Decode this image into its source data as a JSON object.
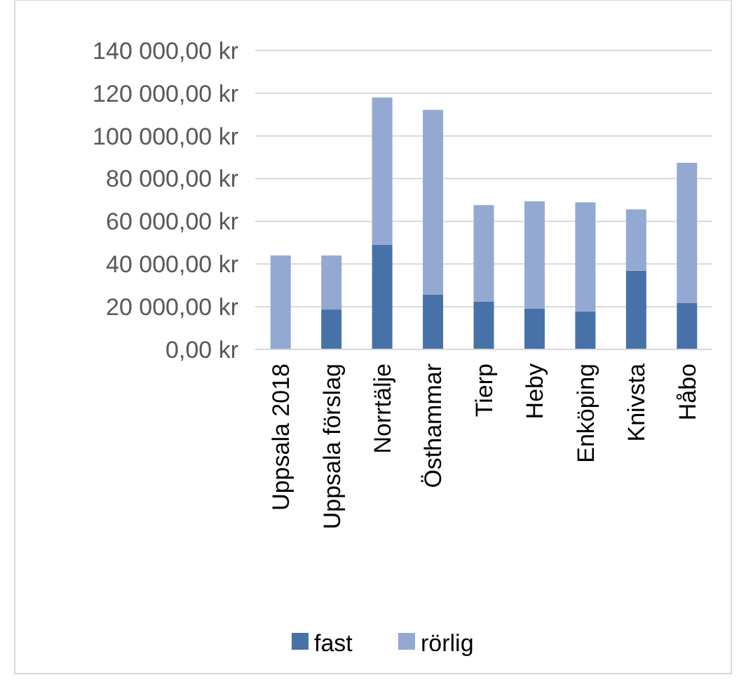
{
  "chart_data": {
    "type": "bar",
    "stacked": true,
    "categories": [
      "Uppsala 2018",
      "Uppsala förslag",
      "Norrtälje",
      "Östhammar",
      "Tierp",
      "Heby",
      "Enköping",
      "Knivsta",
      "Håbo"
    ],
    "series": [
      {
        "name": "fast",
        "color": "#4672a8",
        "values": [
          0,
          18700,
          49000,
          25700,
          22400,
          19100,
          17800,
          36900,
          21700
        ]
      },
      {
        "name": "rörlig",
        "color": "#93a9d1",
        "values": [
          44000,
          25300,
          69000,
          86500,
          45200,
          50300,
          51100,
          28700,
          65700
        ]
      }
    ],
    "ylim": [
      0,
      140000
    ],
    "yticks": [
      {
        "value": 0,
        "label": "0,00 kr"
      },
      {
        "value": 20000,
        "label": "20 000,00 kr"
      },
      {
        "value": 40000,
        "label": "40 000,00 kr"
      },
      {
        "value": 60000,
        "label": "60 000,00 kr"
      },
      {
        "value": 80000,
        "label": "80 000,00 kr"
      },
      {
        "value": 100000,
        "label": "100 000,00 kr"
      },
      {
        "value": 120000,
        "label": "120 000,00 kr"
      },
      {
        "value": 140000,
        "label": "140 000,00 kr"
      }
    ],
    "grid": "y",
    "legend": "bottom"
  }
}
